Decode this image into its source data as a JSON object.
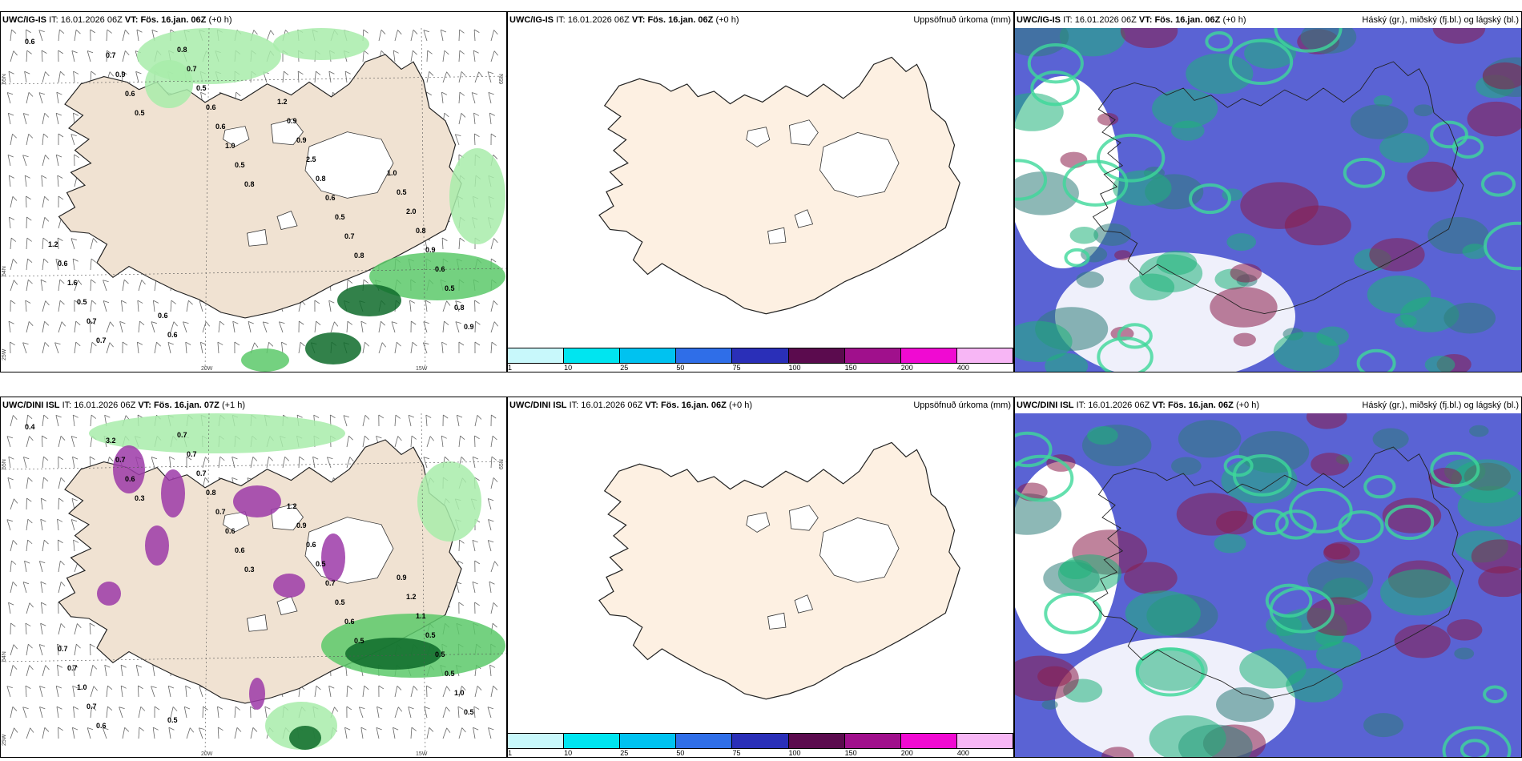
{
  "rows": [
    {
      "precip": {
        "model": "UWC/IG-IS",
        "it_label": "IT:",
        "it_value": "16.01.2026 06Z",
        "vt_label": "VT:",
        "vt_value": "Fös. 16.jan. 06Z",
        "lead": "(+0 h)",
        "lat_labels": [
          "65N",
          "64N",
          "25W"
        ],
        "lon_labels": [
          "20W",
          "15W"
        ],
        "right_lat_label": "65N",
        "values": [
          "0.6",
          "0.5",
          "0.8",
          "0.8",
          "0.9",
          "0.6",
          "0.5",
          "0.7",
          "0.8",
          "0.9",
          "1.0",
          "0.5",
          "0.5",
          "0.7",
          "0.6",
          "0.6",
          "0.6",
          "0.7",
          "0.6",
          "0.8",
          "0.9",
          "0.7",
          "0.5",
          "2.5",
          "0.8",
          "0.5",
          "0.7",
          "0.9",
          "2.0",
          "1.6",
          "0.8",
          "0.9",
          "0.5",
          "0.6",
          "0.6",
          "1.2",
          "1.0",
          "1.2",
          "0.6"
        ]
      },
      "accum": {
        "model": "UWC/IG-IS",
        "it_label": "IT:",
        "it_value": "16.01.2026 06Z",
        "vt_label": "VT:",
        "vt_value": "Fös. 16.jan. 06Z",
        "lead": "(+0 h)",
        "title": "Uppsöfnuð úrkoma (mm)"
      },
      "cloud": {
        "model": "UWC/IG-IS",
        "it_label": "IT:",
        "it_value": "16.01.2026 06Z",
        "vt_label": "VT:",
        "vt_value": "Fös. 16.jan. 06Z",
        "lead": "(+0 h)",
        "title": "Háský (gr.), miðský (fj.bl.) og lágský (bl.)"
      }
    },
    {
      "precip": {
        "model": "UWC/DINI ISL",
        "it_label": "IT:",
        "it_value": "16.01.2026 06Z",
        "vt_label": "VT:",
        "vt_value": "Fös. 16.jan. 07Z",
        "lead": "(+1 h)",
        "lat_labels": [
          "65N",
          "64N",
          "25W"
        ],
        "lon_labels": [
          "20W",
          "15W"
        ],
        "right_lat_label": "65N",
        "values": [
          "0.4",
          "0.3",
          "0.3",
          "0.5",
          "0.5",
          "0.6",
          "0.6",
          "0.6",
          "1.0",
          "0.7",
          "0.6",
          "0.5",
          "0.5",
          "3.2",
          "0.7",
          "0.7",
          "0.5",
          "0.6",
          "0.8",
          "0.5",
          "0.5",
          "0.7",
          "0.7",
          "0.6",
          "1.1",
          "1.0",
          "0.7",
          "0.9",
          "1.2",
          "0.7",
          "0.7",
          "1.2",
          "0.9",
          "0.7",
          "0.5"
        ]
      },
      "accum": {
        "model": "UWC/DINI ISL",
        "it_label": "IT:",
        "it_value": "16.01.2026 06Z",
        "vt_label": "VT:",
        "vt_value": "Fös. 16.jan. 06Z",
        "lead": "(+0 h)",
        "title": "Uppsöfnuð úrkoma (mm)"
      },
      "cloud": {
        "model": "UWC/DINI ISL",
        "it_label": "IT:",
        "it_value": "16.01.2026 06Z",
        "vt_label": "VT:",
        "vt_value": "Fös. 16.jan. 06Z",
        "lead": "(+0 h)",
        "title": "Háský (gr.), miðský (fj.bl.) og lágský (bl.)"
      }
    }
  ],
  "legend": {
    "ticks": [
      "1",
      "10",
      "25",
      "50",
      "75",
      "100",
      "150",
      "200",
      "400"
    ],
    "colors": [
      "#c8f8fb",
      "#00e5f0",
      "#00c2f0",
      "#2f6ee8",
      "#2a2fb8",
      "#5b0b4e",
      "#a0108c",
      "#f00ad2",
      "#f7b6f5"
    ]
  },
  "colors": {
    "land": "#f0e2d2",
    "land_accum": "#fdf0e2",
    "ice": "#ffffff",
    "precip_light": "#a8ecaa",
    "precip_mid": "#5cc96a",
    "precip_dark": "#0e6b2a",
    "snow_purple": "#9c3aa8",
    "cloud_high_green": "#1fb27a",
    "cloud_mid_red": "#8b1d4a",
    "cloud_low_blue": "#5a63d4"
  }
}
